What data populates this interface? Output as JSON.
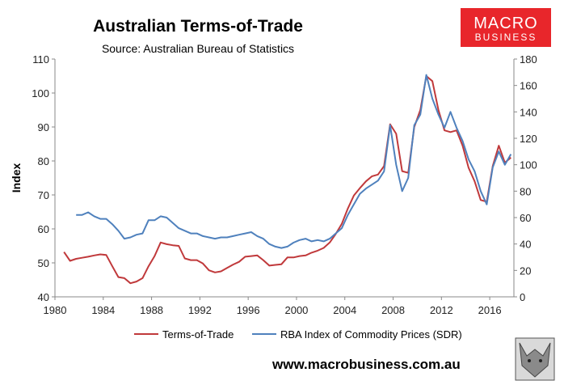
{
  "header": {
    "title": "Australian Terms-of-Trade",
    "subtitle": "Source: Australian Bureau of Statistics"
  },
  "logo": {
    "line1": "MACRO",
    "line2": "BUSINESS",
    "color": "#e8262b"
  },
  "footer": {
    "url": "www.macrobusiness.com.au"
  },
  "chart_data": {
    "type": "line",
    "title": "Australian Terms-of-Trade",
    "subtitle": "Source: Australian Bureau of Statistics",
    "xlabel": "",
    "ylabel": "Index",
    "y2label": "",
    "xlim": [
      1980,
      2018
    ],
    "ylim": [
      40,
      110
    ],
    "y2lim": [
      0,
      180
    ],
    "xticks": [
      1980,
      1984,
      1988,
      1992,
      1996,
      2000,
      2004,
      2008,
      2012,
      2016
    ],
    "yticks": [
      40,
      50,
      60,
      70,
      80,
      90,
      100,
      110
    ],
    "y2ticks": [
      0,
      20,
      40,
      60,
      80,
      100,
      120,
      140,
      160,
      180
    ],
    "grid": false,
    "legend_position": "bottom",
    "series": [
      {
        "name": "Terms-of-Trade",
        "axis": "left",
        "color": "#c0393b",
        "x": [
          1980.75,
          1981.25,
          1981.75,
          1982.25,
          1982.75,
          1983.25,
          1983.75,
          1984.25,
          1984.75,
          1985.25,
          1985.75,
          1986.25,
          1986.75,
          1987.25,
          1987.75,
          1988.25,
          1988.75,
          1989.25,
          1989.75,
          1990.25,
          1990.75,
          1991.25,
          1991.75,
          1992.25,
          1992.75,
          1993.25,
          1993.75,
          1994.25,
          1994.75,
          1995.25,
          1995.75,
          1996.25,
          1996.75,
          1997.25,
          1997.75,
          1998.25,
          1998.75,
          1999.25,
          1999.75,
          2000.25,
          2000.75,
          2001.25,
          2001.75,
          2002.25,
          2002.75,
          2003.25,
          2003.75,
          2004.25,
          2004.75,
          2005.25,
          2005.75,
          2006.25,
          2006.75,
          2007.25,
          2007.75,
          2008.25,
          2008.75,
          2009.25,
          2009.75,
          2010.25,
          2010.75,
          2011.25,
          2011.75,
          2012.25,
          2012.75,
          2013.25,
          2013.75,
          2014.25,
          2014.75,
          2015.25,
          2015.75,
          2016.25,
          2016.75,
          2017.25,
          2017.75
        ],
        "values": [
          53.2,
          50.6,
          51.2,
          51.5,
          51.8,
          52.2,
          52.5,
          52.3,
          49.0,
          45.8,
          45.5,
          44.0,
          44.5,
          45.5,
          49.0,
          52.0,
          56.0,
          55.5,
          55.2,
          55.0,
          51.3,
          50.8,
          50.8,
          49.8,
          47.8,
          47.2,
          47.5,
          48.5,
          49.5,
          50.3,
          51.8,
          52.0,
          52.2,
          50.8,
          49.2,
          49.4,
          49.6,
          51.6,
          51.6,
          52.0,
          52.2,
          53.0,
          53.6,
          54.4,
          56.0,
          58.5,
          61.5,
          66.0,
          69.8,
          72.0,
          74.0,
          75.5,
          76.0,
          78.5,
          90.8,
          88.0,
          77.0,
          76.5,
          90.0,
          95.0,
          105.0,
          103.5,
          95.0,
          89.0,
          88.5,
          89.0,
          84.5,
          78.0,
          74.0,
          68.5,
          68.0,
          78.5,
          84.5,
          79.5,
          81.0
        ]
      },
      {
        "name": "RBA Index of Commodity Prices (SDR)",
        "axis": "right",
        "color": "#4f81bd",
        "x": [
          1981.75,
          1982.25,
          1982.75,
          1983.25,
          1983.75,
          1984.25,
          1984.75,
          1985.25,
          1985.75,
          1986.25,
          1986.75,
          1987.25,
          1987.75,
          1988.25,
          1988.75,
          1989.25,
          1989.75,
          1990.25,
          1990.75,
          1991.25,
          1991.75,
          1992.25,
          1992.75,
          1993.25,
          1993.75,
          1994.25,
          1994.75,
          1995.25,
          1995.75,
          1996.25,
          1996.75,
          1997.25,
          1997.75,
          1998.25,
          1998.75,
          1999.25,
          1999.75,
          2000.25,
          2000.75,
          2001.25,
          2001.75,
          2002.25,
          2002.75,
          2003.25,
          2003.75,
          2004.25,
          2004.75,
          2005.25,
          2005.75,
          2006.25,
          2006.75,
          2007.25,
          2007.75,
          2008.25,
          2008.75,
          2009.25,
          2009.75,
          2010.25,
          2010.75,
          2011.25,
          2011.75,
          2012.25,
          2012.75,
          2013.25,
          2013.75,
          2014.25,
          2014.75,
          2015.25,
          2015.75,
          2016.25,
          2016.75,
          2017.25,
          2017.75
        ],
        "values": [
          62,
          62,
          64,
          61,
          59,
          59,
          55,
          50,
          44,
          45,
          47,
          48,
          58,
          58,
          61,
          60,
          56,
          52,
          50,
          48,
          48,
          46,
          45,
          44,
          45,
          45,
          46,
          47,
          48,
          49,
          46,
          44,
          40,
          38,
          37,
          38,
          41,
          43,
          44,
          42,
          43,
          42,
          44,
          48,
          52,
          62,
          70,
          78,
          82,
          85,
          88,
          95,
          130,
          100,
          80,
          90,
          130,
          138,
          168,
          150,
          138,
          128,
          140,
          128,
          118,
          104,
          95,
          80,
          70,
          98,
          110,
          100,
          108
        ]
      }
    ]
  }
}
